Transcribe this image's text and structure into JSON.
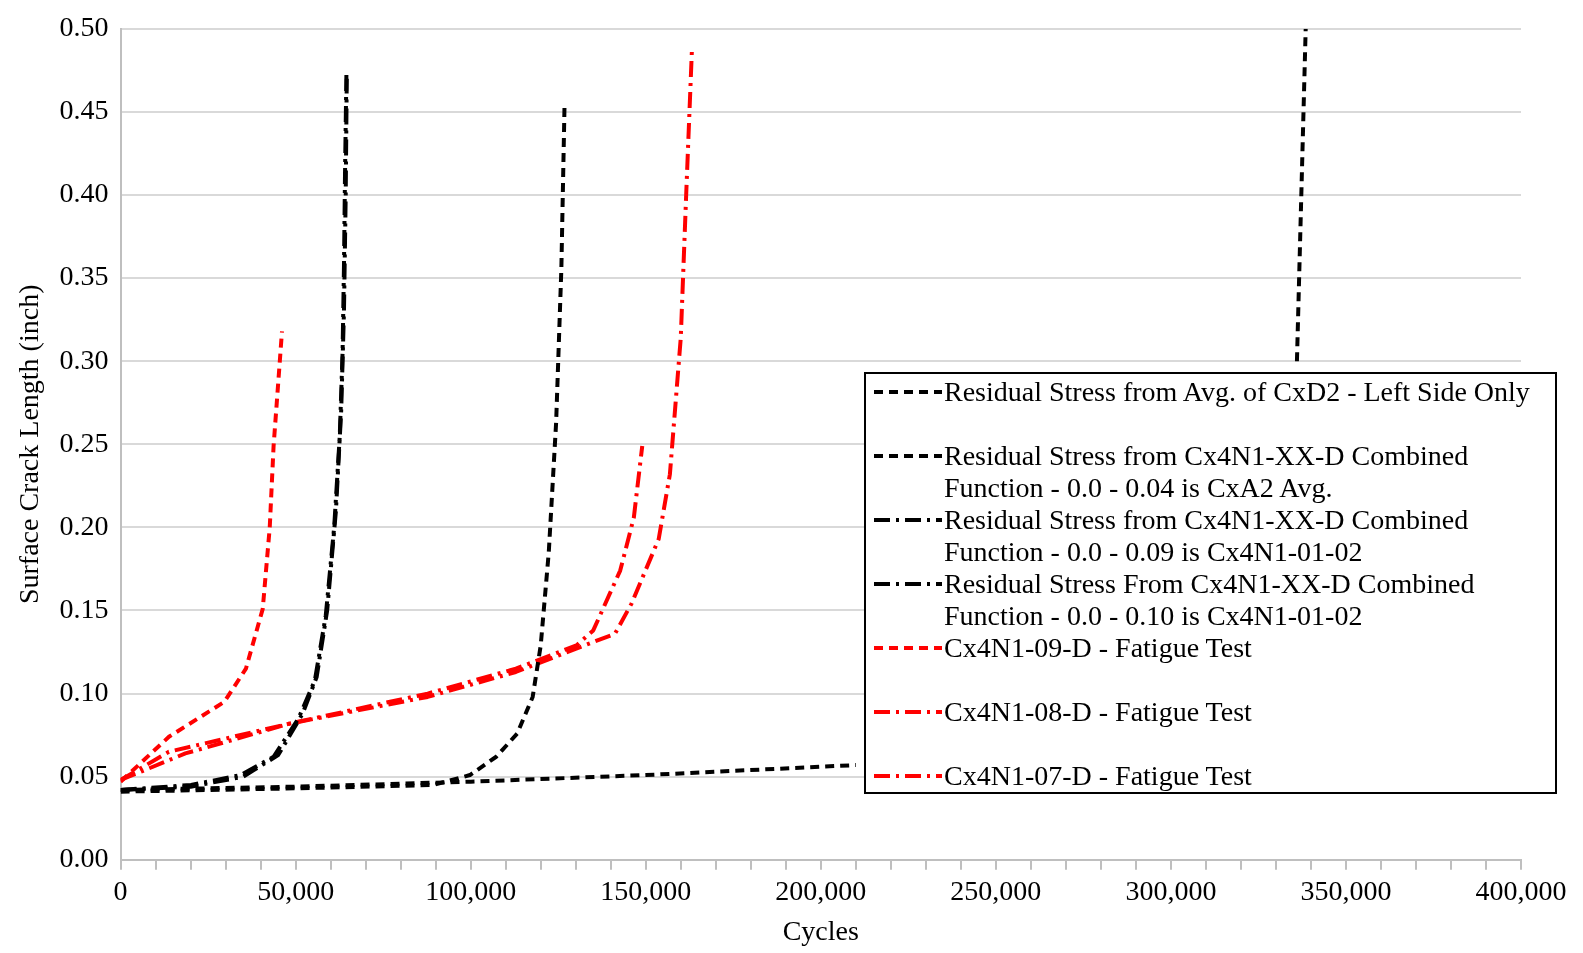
{
  "chart_data": {
    "type": "line",
    "xlabel": "Cycles",
    "ylabel": "Surface Crack Length (inch)",
    "xlim": [
      0,
      400000
    ],
    "ylim": [
      0,
      0.5
    ],
    "xticks": [
      {
        "value": 0,
        "label": "0"
      },
      {
        "value": 10000,
        "label": null
      },
      {
        "value": 20000,
        "label": null
      },
      {
        "value": 30000,
        "label": null
      },
      {
        "value": 40000,
        "label": null
      },
      {
        "value": 50000,
        "label": "50,000"
      },
      {
        "value": 60000,
        "label": null
      },
      {
        "value": 70000,
        "label": null
      },
      {
        "value": 80000,
        "label": null
      },
      {
        "value": 90000,
        "label": null
      },
      {
        "value": 100000,
        "label": "100,000"
      },
      {
        "value": 110000,
        "label": null
      },
      {
        "value": 120000,
        "label": null
      },
      {
        "value": 130000,
        "label": null
      },
      {
        "value": 140000,
        "label": null
      },
      {
        "value": 150000,
        "label": "150,000"
      },
      {
        "value": 160000,
        "label": null
      },
      {
        "value": 170000,
        "label": null
      },
      {
        "value": 180000,
        "label": null
      },
      {
        "value": 190000,
        "label": null
      },
      {
        "value": 200000,
        "label": "200,000"
      },
      {
        "value": 210000,
        "label": null
      },
      {
        "value": 220000,
        "label": null
      },
      {
        "value": 230000,
        "label": null
      },
      {
        "value": 240000,
        "label": null
      },
      {
        "value": 250000,
        "label": "250,000"
      },
      {
        "value": 260000,
        "label": null
      },
      {
        "value": 270000,
        "label": null
      },
      {
        "value": 280000,
        "label": null
      },
      {
        "value": 290000,
        "label": null
      },
      {
        "value": 300000,
        "label": "300,000"
      },
      {
        "value": 310000,
        "label": null
      },
      {
        "value": 320000,
        "label": null
      },
      {
        "value": 330000,
        "label": null
      },
      {
        "value": 340000,
        "label": null
      },
      {
        "value": 350000,
        "label": "350,000"
      },
      {
        "value": 360000,
        "label": null
      },
      {
        "value": 370000,
        "label": null
      },
      {
        "value": 380000,
        "label": null
      },
      {
        "value": 390000,
        "label": null
      },
      {
        "value": 400000,
        "label": "400,000"
      }
    ],
    "yticks": [
      {
        "value": 0,
        "label": "0.00"
      },
      {
        "value": 0.05,
        "label": "0.05"
      },
      {
        "value": 0.1,
        "label": "0.10"
      },
      {
        "value": 0.15,
        "label": "0.15"
      },
      {
        "value": 0.2,
        "label": "0.20"
      },
      {
        "value": 0.25,
        "label": "0.25"
      },
      {
        "value": 0.3,
        "label": "0.30"
      },
      {
        "value": 0.35,
        "label": "0.35"
      },
      {
        "value": 0.4,
        "label": "0.40"
      },
      {
        "value": 0.45,
        "label": "0.45"
      },
      {
        "value": 0.5,
        "label": "0.50"
      }
    ],
    "grid": "y",
    "legend": "bottom right",
    "marker": "none",
    "series": [
      {
        "name": "Residual  Stress from Avg. of CxD2 - Left Side Only",
        "color": "#000000",
        "line_style": "dashed",
        "x": [
          0,
          50000,
          100000,
          150000,
          200000,
          210000,
          270000,
          336000,
          337000,
          338500
        ],
        "values": [
          0.042,
          0.044,
          0.047,
          0.051,
          0.056,
          0.057,
          null,
          0.3,
          0.38,
          0.5
        ]
      },
      {
        "name": "Residual  Stress from Cx4N1-XX-D Combined Function - 0.0 - 0.04 is CxA2 Avg.",
        "color": "#000000",
        "line_style": "dashed",
        "x": [
          0,
          50000,
          89300,
          99800,
          107300,
          113300,
          117700,
          120000,
          122300,
          124400,
          125900,
          126800
        ],
        "values": [
          0.041,
          0.043,
          0.045,
          0.051,
          0.062,
          0.076,
          0.098,
          0.129,
          0.185,
          0.263,
          0.356,
          0.454
        ]
      },
      {
        "name": "Residual  Stress from Cx4N1-XX-D Combined Function - 0.0 - 0.09 is Cx4N1-01-02",
        "color": "#000000",
        "line_style": "dashdot",
        "x": [
          0,
          20100,
          34300,
          43700,
          50800,
          55500,
          58600,
          61000,
          62600,
          63400,
          63800,
          64100,
          64500
        ],
        "values": [
          0.042,
          0.045,
          0.051,
          0.062,
          0.085,
          0.108,
          0.147,
          0.2,
          0.255,
          0.305,
          0.357,
          0.413,
          0.473
        ]
      },
      {
        "name": "Residual  Stress From Cx4N1-XX-D Combined Function - 0.0 - 0.10 is Cx4N1-01-02",
        "color": "#000000",
        "line_style": "dashdot",
        "x": [
          0,
          20000,
          35000,
          45000,
          52000,
          56000,
          59000,
          61500,
          63000,
          63800,
          64300,
          64600
        ],
        "values": [
          0.042,
          0.044,
          0.05,
          0.063,
          0.088,
          0.11,
          0.15,
          0.21,
          0.27,
          0.33,
          0.4,
          0.47
        ]
      },
      {
        "name": "Cx4N1-09-D - Fatigue Test",
        "color": "#ff0000",
        "line_style": "dashed",
        "x": [
          0,
          13800,
          29600,
          35800,
          40600,
          42600,
          43700,
          46100
        ],
        "values": [
          0.047,
          0.074,
          0.095,
          0.115,
          0.151,
          0.2,
          0.249,
          0.318
        ]
      },
      {
        "name": "Cx4N1-08-D - Fatigue Test",
        "color": "#ff0000",
        "line_style": "dashdot",
        "x": [
          0,
          13800,
          48400,
          87700,
          112900,
          130200,
          135000,
          142700,
          146600,
          149000
        ],
        "values": [
          0.048,
          0.065,
          0.082,
          0.1,
          0.115,
          0.129,
          0.138,
          0.174,
          0.206,
          0.249
        ]
      },
      {
        "name": "Cx4N1-07-D - Fatigue Test",
        "color": "#ff0000",
        "line_style": "dashdot",
        "x": [
          0,
          18500,
          48400,
          87700,
          112900,
          135000,
          141200,
          145900,
          153700,
          156900,
          160000,
          161600,
          163200
        ],
        "values": [
          0.048,
          0.064,
          0.082,
          0.098,
          0.113,
          0.131,
          0.136,
          0.154,
          0.193,
          0.232,
          0.314,
          0.403,
          0.488
        ]
      }
    ]
  }
}
